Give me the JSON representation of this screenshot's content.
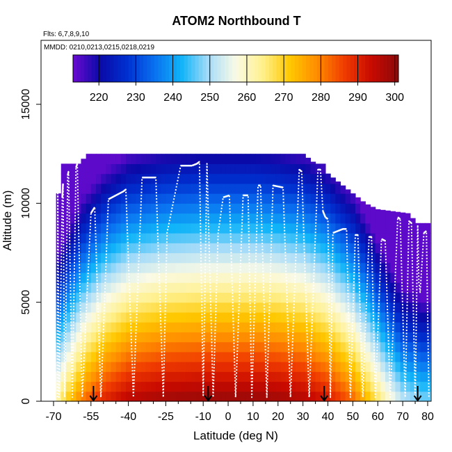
{
  "chart_data": {
    "type": "heatmap",
    "title": "ATOM2 Northbound T",
    "flights_text": "Flts: 6,7,8,9,10",
    "dates_text": "MMDD: 0210,0213,0215,0218,0219",
    "xlabel": "Latitude (deg N)",
    "ylabel": "Altitude (m)",
    "xlim": [
      -70,
      83
    ],
    "ylim": [
      0,
      17500
    ],
    "x_ticks": [
      -70,
      -55,
      -40,
      -25,
      -10,
      0,
      10,
      20,
      30,
      40,
      50,
      60,
      70,
      80
    ],
    "x_minor_ticks": [
      -65,
      -60,
      -50,
      -45,
      -35,
      -30,
      -20,
      -15,
      -5,
      5,
      15,
      25,
      35,
      45,
      55,
      65,
      75
    ],
    "y_ticks": [
      0,
      5000,
      10000,
      15000
    ],
    "colorbar": {
      "min": 213,
      "max": 301,
      "ticks": [
        220,
        230,
        240,
        250,
        260,
        270,
        280,
        290,
        300
      ],
      "colors": [
        "#6a0ad0",
        "#0a0aa8",
        "#0030d0",
        "#0a70f0",
        "#10b4f8",
        "#a8dcf8",
        "#fafae6",
        "#fff08c",
        "#ffc800",
        "#ff8c00",
        "#f03c00",
        "#c80a00",
        "#8c0a0a"
      ]
    },
    "ceiling_km": [
      {
        "lat": -68,
        "top": 10.5
      },
      {
        "lat": -66,
        "top": 12.0
      },
      {
        "lat": -62,
        "top": 12.0
      },
      {
        "lat": -59,
        "top": 12.0
      },
      {
        "lat": -57,
        "top": 12.5
      },
      {
        "lat": -10,
        "top": 12.5
      },
      {
        "lat": -9,
        "top": 13.2
      },
      {
        "lat": -8,
        "top": 12.5
      },
      {
        "lat": 30,
        "top": 12.5
      },
      {
        "lat": 35,
        "top": 12.0
      },
      {
        "lat": 38,
        "top": 12.0
      },
      {
        "lat": 40,
        "top": 11.5
      },
      {
        "lat": 45,
        "top": 11.0
      },
      {
        "lat": 50,
        "top": 10.5
      },
      {
        "lat": 55,
        "top": 10.0
      },
      {
        "lat": 60,
        "top": 9.7
      },
      {
        "lat": 72,
        "top": 9.5
      },
      {
        "lat": 76,
        "top": 9.0
      },
      {
        "lat": 80,
        "top": 9.0
      }
    ],
    "temperature_model": {
      "surface_temp_by_lat": [
        [
          -68,
          264
        ],
        [
          -64,
          272
        ],
        [
          -58,
          282
        ],
        [
          -50,
          290
        ],
        [
          -40,
          296
        ],
        [
          -25,
          299
        ],
        [
          -10,
          300
        ],
        [
          0,
          300
        ],
        [
          10,
          300
        ],
        [
          20,
          299
        ],
        [
          30,
          297
        ],
        [
          40,
          292
        ],
        [
          50,
          283
        ],
        [
          57,
          272
        ],
        [
          63,
          262
        ],
        [
          70,
          252
        ],
        [
          78,
          248
        ],
        [
          81,
          248
        ]
      ],
      "lapse_rate_K_per_km": 6.5,
      "min_temp": 214
    },
    "flight_track": [
      [
        -68.5,
        0.2
      ],
      [
        -68.3,
        10.5
      ],
      [
        -67.8,
        0.2
      ],
      [
        -66.5,
        10.3
      ],
      [
        -66.2,
        11.0
      ],
      [
        -65.5,
        0.2
      ],
      [
        -64.3,
        11.4
      ],
      [
        -64.0,
        11.6
      ],
      [
        -62.5,
        0.2
      ],
      [
        -61.0,
        11.8
      ],
      [
        -60.5,
        12.0
      ],
      [
        -58.5,
        0.2
      ],
      [
        -55.0,
        9.5
      ],
      [
        -53.5,
        9.8
      ],
      [
        -51.0,
        0.2
      ],
      [
        -48.0,
        10.2
      ],
      [
        -45.0,
        10.4
      ],
      [
        -42.0,
        10.6
      ],
      [
        -41.0,
        10.7
      ],
      [
        -38.0,
        0.2
      ],
      [
        -34.5,
        11.3
      ],
      [
        -29.0,
        11.3
      ],
      [
        -26.0,
        0.2
      ],
      [
        -24.5,
        8.5
      ],
      [
        -19.0,
        11.9
      ],
      [
        -14.5,
        11.9
      ],
      [
        -12.5,
        12.0
      ],
      [
        -11.5,
        12.1
      ],
      [
        -10.0,
        0.3
      ],
      [
        -8.5,
        12.0
      ],
      [
        -6.0,
        0.2
      ],
      [
        -4.0,
        8.5
      ],
      [
        -2.0,
        10.3
      ],
      [
        0.5,
        10.4
      ],
      [
        3.0,
        0.2
      ],
      [
        6.0,
        10.4
      ],
      [
        8.0,
        10.4
      ],
      [
        9.5,
        0.2
      ],
      [
        12.0,
        10.9
      ],
      [
        13.0,
        10.9
      ],
      [
        15.5,
        0.2
      ],
      [
        18.0,
        10.9
      ],
      [
        22.0,
        10.8
      ],
      [
        25.0,
        0.2
      ],
      [
        28.5,
        11.7
      ],
      [
        29.5,
        11.6
      ],
      [
        32.5,
        0.2
      ],
      [
        36.0,
        11.7
      ],
      [
        37.0,
        11.7
      ],
      [
        38.0,
        9.6
      ],
      [
        39.0,
        9.3
      ],
      [
        40.0,
        9.2
      ],
      [
        41.0,
        0.2
      ],
      [
        42.0,
        8.5
      ],
      [
        46.0,
        8.7
      ],
      [
        47.5,
        8.7
      ],
      [
        49.0,
        0.2
      ],
      [
        51.0,
        8.4
      ],
      [
        52.0,
        8.4
      ],
      [
        54.0,
        0.2
      ],
      [
        56.5,
        8.3
      ],
      [
        57.5,
        8.3
      ],
      [
        59.0,
        0.2
      ],
      [
        61.5,
        8.2
      ],
      [
        63.0,
        8.1
      ],
      [
        65.0,
        0.2
      ],
      [
        68.0,
        9.3
      ],
      [
        69.0,
        9.2
      ],
      [
        71.0,
        0.2
      ],
      [
        72.5,
        9.1
      ],
      [
        73.5,
        9.0
      ],
      [
        75.0,
        0.2
      ],
      [
        76.0,
        8.9
      ],
      [
        76.5,
        6.0
      ],
      [
        77.0,
        5.5
      ],
      [
        78.5,
        8.5
      ],
      [
        79.5,
        8.6
      ],
      [
        80.5,
        0.2
      ]
    ],
    "arrow_lats": [
      -54,
      -8,
      38.5,
      76
    ]
  }
}
